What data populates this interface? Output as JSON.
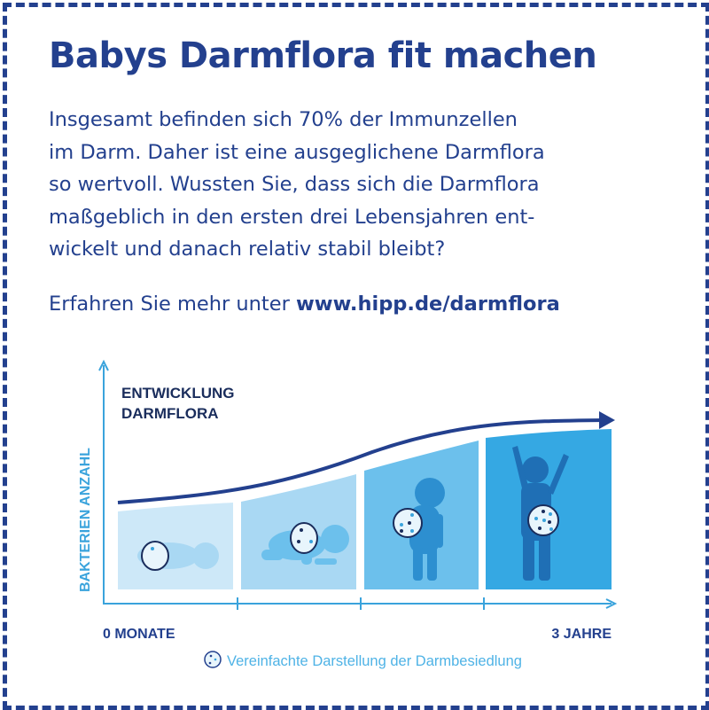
{
  "title": "Babys Darmflora fit machen",
  "body_lines": [
    "Insgesamt befinden sich 70% der Immunzellen",
    "im Darm. Daher ist eine ausgeglichene Darmflora",
    "so wertvoll. Wussten Sie, dass sich die Darmflora",
    "maßgeblich in den ersten drei Lebensjahren ent-",
    "wickelt und danach relativ stabil bleibt?"
  ],
  "more_prefix": "Erfahren Sie mehr unter",
  "more_link": "www.hipp.de/darmflora",
  "diagram": {
    "heading_line1": "ENTWICKLUNG",
    "heading_line2": "DARMFLORA",
    "y_axis_label": "BAKTERIEN ANZAHL",
    "x_start_label": "0 MONATE",
    "x_end_label": "3 JAHRE",
    "legend": "Vereinfachte Darstellung der Darmbesiedlung",
    "stages": [
      "newborn",
      "crawling-baby",
      "standing-toddler",
      "cheering-child"
    ],
    "colors": {
      "navy": "#23408e",
      "axis": "#3aa3dc",
      "stage1": "#cde8f8",
      "stage2": "#a9d8f3",
      "stage3": "#6cc0ec",
      "stage4": "#35a8e3"
    }
  }
}
